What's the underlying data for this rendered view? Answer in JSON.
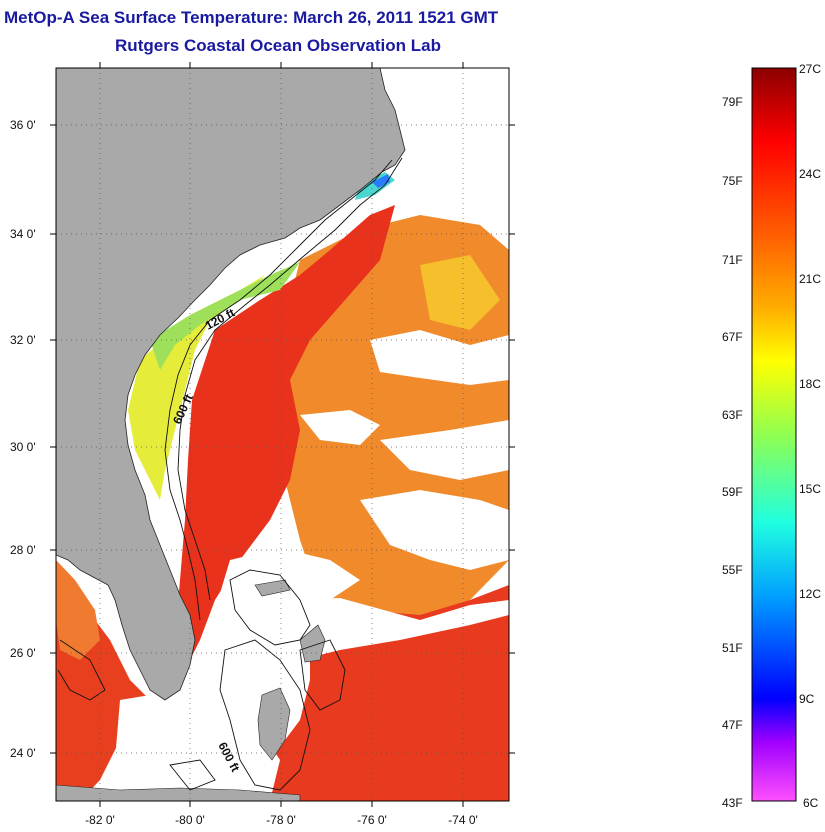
{
  "title": "MetOp-A Sea Surface Temperature:  March 26, 2011 1521 GMT",
  "subtitle": "Rutgers Coastal Ocean Observation Lab",
  "map": {
    "lat_labels": [
      "36 0'",
      "34 0'",
      "32 0'",
      "30 0'",
      "28 0'",
      "26 0'",
      "24 0'"
    ],
    "lon_labels": [
      "-82 0'",
      "-80 0'",
      "-78 0'",
      "-76 0'",
      "-74 0'"
    ],
    "contour_labels": [
      "120 ft",
      "600 ft",
      "600 ft"
    ],
    "land_color": "#a9a9a9",
    "cloud_color": "#ffffff"
  },
  "colorbar": {
    "fahrenheit": [
      "79F",
      "75F",
      "71F",
      "67F",
      "63F",
      "59F",
      "55F",
      "51F",
      "47F",
      "43F"
    ],
    "celsius": [
      "27C",
      "24C",
      "21C",
      "18C",
      "15C",
      "12C",
      "9C",
      "6C"
    ],
    "colors": [
      "#8b0000",
      "#ff0000",
      "#ff6a00",
      "#ffb000",
      "#ffff00",
      "#a0ff40",
      "#20ffd0",
      "#00c0ff",
      "#0050ff",
      "#0000ff",
      "#a000ff",
      "#ff40ff"
    ]
  }
}
